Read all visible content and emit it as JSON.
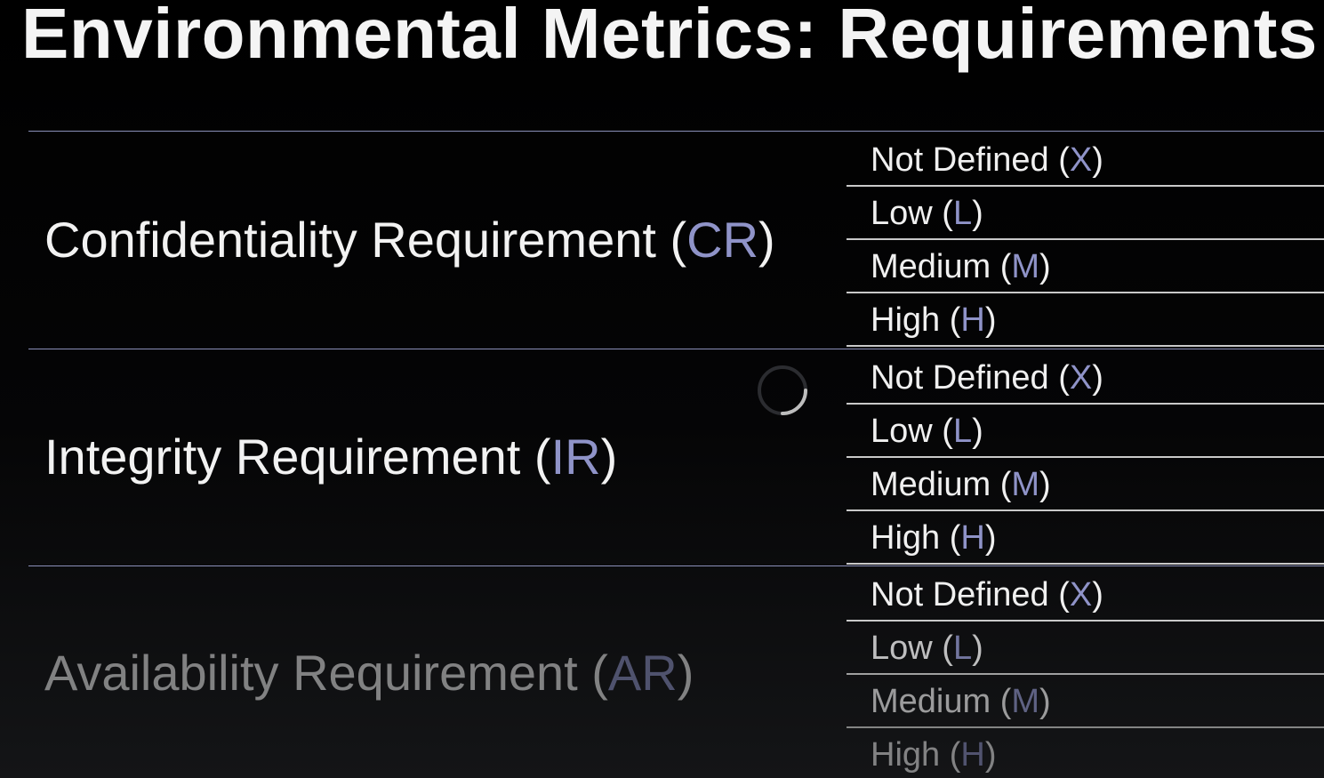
{
  "title": "Environmental Metrics: Requirements",
  "metrics": [
    {
      "name": "Confidentiality Requirement",
      "abbr": "CR",
      "options": [
        {
          "label": "Not Defined",
          "code": "X"
        },
        {
          "label": "Low",
          "code": "L"
        },
        {
          "label": "Medium",
          "code": "M"
        },
        {
          "label": "High",
          "code": "H"
        }
      ]
    },
    {
      "name": "Integrity Requirement",
      "abbr": "IR",
      "options": [
        {
          "label": "Not Defined",
          "code": "X"
        },
        {
          "label": "Low",
          "code": "L"
        },
        {
          "label": "Medium",
          "code": "M"
        },
        {
          "label": "High",
          "code": "H"
        }
      ]
    },
    {
      "name": "Availability Requirement",
      "abbr": "AR",
      "options": [
        {
          "label": "Not Defined",
          "code": "X"
        },
        {
          "label": "Low",
          "code": "L"
        },
        {
          "label": "Medium",
          "code": "M"
        },
        {
          "label": "High",
          "code": "H"
        }
      ]
    }
  ],
  "loading_indicator": "spinner-icon",
  "colors": {
    "accent": "#8f93c8",
    "text": "#f2f2f2",
    "divider": "#8a8fb8",
    "option_rule": "#c9c9c9",
    "background": "#000000"
  }
}
